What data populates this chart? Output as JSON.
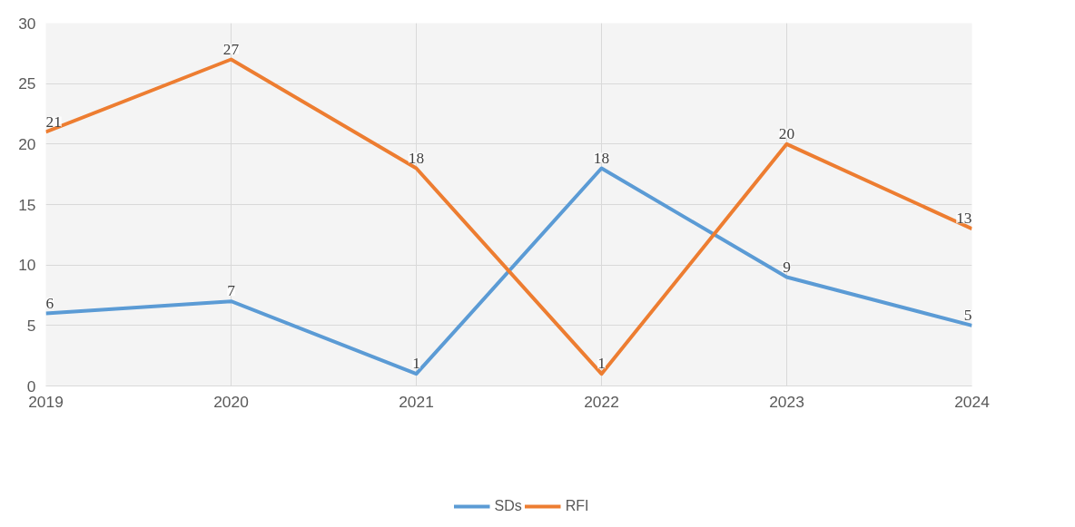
{
  "chart_data": {
    "type": "line",
    "x": [
      2019,
      2020,
      2021,
      2022,
      2023,
      2024
    ],
    "xlim": [
      2019,
      2024
    ],
    "xticks": [
      2019,
      2020,
      2021,
      2022,
      2023,
      2024
    ],
    "ylim": [
      0,
      30
    ],
    "yticks": [
      0,
      5,
      10,
      15,
      20,
      25,
      30
    ],
    "series": [
      {
        "name": "SDs",
        "color": "#5b9bd5",
        "values": [
          6,
          7,
          1,
          18,
          9,
          5
        ]
      },
      {
        "name": "RFI",
        "color": "#ed7d31",
        "values": [
          21,
          27,
          18,
          1,
          20,
          13
        ]
      }
    ],
    "data_labels": true,
    "grid": true,
    "legend": "bottom",
    "marker": "none",
    "line_style": "solid"
  }
}
